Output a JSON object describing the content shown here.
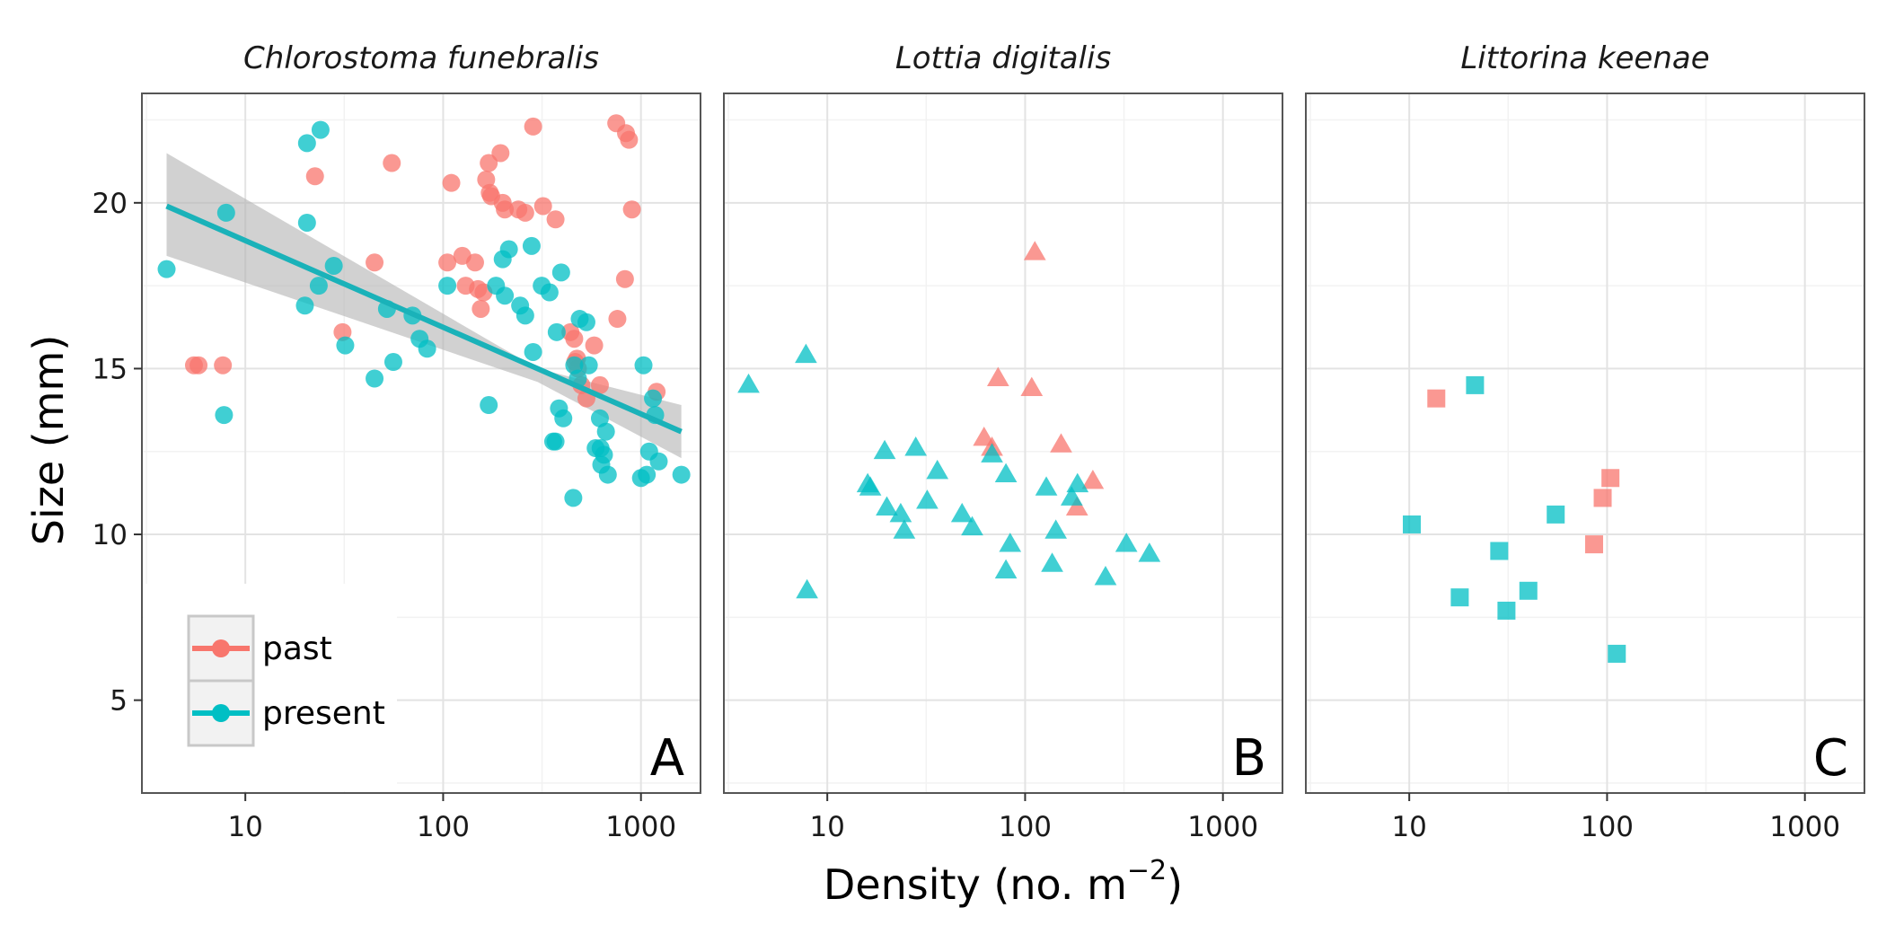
{
  "chart_data": {
    "type": "scatter",
    "xlabel_main": "Density (no. m",
    "xlabel_sup": "−2",
    "xlabel_close": ")",
    "ylabel": "Size (mm)",
    "x_scale": "log10",
    "xlim": [
      3,
      2000
    ],
    "ylim": [
      2.2,
      23.3
    ],
    "x_ticks": [
      10,
      100,
      1000
    ],
    "x_tick_labels": [
      "10",
      "100",
      "1000"
    ],
    "y_ticks": [
      5,
      10,
      15,
      20
    ],
    "y_tick_labels": [
      "5",
      "10",
      "15",
      "20"
    ],
    "grid": true,
    "legend": {
      "position": "bottom-left of first panel",
      "entries": [
        {
          "label": "past",
          "color": "#F8766D"
        },
        {
          "label": "present",
          "color": "#00BFC4"
        }
      ]
    },
    "colors": {
      "past": "#F8766D",
      "present": "#00BFC4",
      "fit_line": "#1AB2B9",
      "ribbon": "#B3B3B3"
    },
    "panels": [
      {
        "title": "Chlorostoma funebralis",
        "letter": "A",
        "marker": "circle",
        "fit": {
          "series": "present",
          "x": [
            4,
            1600
          ],
          "y": [
            19.9,
            13.1
          ],
          "ci_upper": [
            21.5,
            13.9
          ],
          "ci_mid_x": 300,
          "ci_mid_upper": 15.0,
          "ci_mid_lower": 14.6,
          "ci_lower": [
            18.4,
            12.3
          ]
        },
        "series": [
          {
            "name": "past",
            "points": [
              [
                5.5,
                15.1
              ],
              [
                5.8,
                15.1
              ],
              [
                7.7,
                15.1
              ],
              [
                22.5,
                20.8
              ],
              [
                31,
                16.1
              ],
              [
                45,
                18.2
              ],
              [
                55,
                21.2
              ],
              [
                105,
                18.2
              ],
              [
                110,
                20.6
              ],
              [
                125,
                18.4
              ],
              [
                130,
                17.5
              ],
              [
                145,
                18.2
              ],
              [
                150,
                17.4
              ],
              [
                155,
                16.8
              ],
              [
                160,
                17.3
              ],
              [
                165,
                20.7
              ],
              [
                170,
                21.2
              ],
              [
                172,
                20.3
              ],
              [
                175,
                20.2
              ],
              [
                195,
                21.5
              ],
              [
                200,
                20.0
              ],
              [
                205,
                19.8
              ],
              [
                240,
                19.8
              ],
              [
                260,
                19.7
              ],
              [
                285,
                22.3
              ],
              [
                320,
                19.9
              ],
              [
                370,
                19.5
              ],
              [
                440,
                16.1
              ],
              [
                460,
                15.9
              ],
              [
                465,
                15.2
              ],
              [
                475,
                15.3
              ],
              [
                480,
                15.0
              ],
              [
                500,
                14.5
              ],
              [
                530,
                14.1
              ],
              [
                580,
                15.7
              ],
              [
                620,
                14.5
              ],
              [
                750,
                22.4
              ],
              [
                760,
                16.5
              ],
              [
                830,
                17.7
              ],
              [
                840,
                22.1
              ],
              [
                870,
                21.9
              ],
              [
                900,
                19.8
              ],
              [
                1200,
                14.3
              ]
            ]
          },
          {
            "name": "present",
            "points": [
              [
                4,
                18.0
              ],
              [
                7.8,
                13.6
              ],
              [
                8,
                19.7
              ],
              [
                20,
                16.9
              ],
              [
                20.5,
                19.4
              ],
              [
                20.5,
                21.8
              ],
              [
                23.5,
                17.5
              ],
              [
                24,
                22.2
              ],
              [
                28,
                18.1
              ],
              [
                32,
                15.7
              ],
              [
                45,
                14.7
              ],
              [
                52,
                16.8
              ],
              [
                56,
                15.2
              ],
              [
                70,
                16.6
              ],
              [
                76,
                15.9
              ],
              [
                83,
                15.6
              ],
              [
                105,
                17.5
              ],
              [
                170,
                13.9
              ],
              [
                185,
                17.5
              ],
              [
                200,
                18.3
              ],
              [
                205,
                17.2
              ],
              [
                215,
                18.6
              ],
              [
                245,
                16.9
              ],
              [
                260,
                16.6
              ],
              [
                280,
                18.7
              ],
              [
                285,
                15.5
              ],
              [
                315,
                17.5
              ],
              [
                345,
                17.3
              ],
              [
                360,
                12.8
              ],
              [
                370,
                12.8
              ],
              [
                375,
                16.1
              ],
              [
                385,
                13.8
              ],
              [
                395,
                17.9
              ],
              [
                405,
                13.5
              ],
              [
                455,
                11.1
              ],
              [
                460,
                15.1
              ],
              [
                480,
                14.7
              ],
              [
                490,
                16.5
              ],
              [
                530,
                16.4
              ],
              [
                545,
                15.1
              ],
              [
                590,
                12.6
              ],
              [
                620,
                13.5
              ],
              [
                625,
                12.6
              ],
              [
                630,
                12.1
              ],
              [
                650,
                12.4
              ],
              [
                665,
                13.1
              ],
              [
                680,
                11.8
              ],
              [
                1000,
                11.7
              ],
              [
                1030,
                15.1
              ],
              [
                1070,
                11.8
              ],
              [
                1100,
                12.5
              ],
              [
                1150,
                14.1
              ],
              [
                1180,
                13.6
              ],
              [
                1230,
                12.2
              ],
              [
                1600,
                11.8
              ]
            ]
          }
        ]
      },
      {
        "title": "Lottia digitalis",
        "letter": "B",
        "marker": "triangle",
        "series": [
          {
            "name": "past",
            "points": [
              [
                62,
                12.9
              ],
              [
                68,
                12.6
              ],
              [
                73,
                14.7
              ],
              [
                108,
                14.4
              ],
              [
                112,
                18.5
              ],
              [
                152,
                12.7
              ],
              [
                183,
                10.8
              ],
              [
                220,
                11.6
              ]
            ]
          },
          {
            "name": "present",
            "points": [
              [
                4,
                14.5
              ],
              [
                7.8,
                15.4
              ],
              [
                7.9,
                8.3
              ],
              [
                16,
                11.5
              ],
              [
                16.5,
                11.4
              ],
              [
                19.5,
                12.5
              ],
              [
                20,
                10.8
              ],
              [
                23.5,
                10.6
              ],
              [
                24.5,
                10.1
              ],
              [
                28,
                12.6
              ],
              [
                32,
                11.0
              ],
              [
                36,
                11.9
              ],
              [
                48,
                10.6
              ],
              [
                54,
                10.2
              ],
              [
                68,
                12.4
              ],
              [
                80,
                11.8
              ],
              [
                80,
                8.9
              ],
              [
                84,
                9.7
              ],
              [
                128,
                11.4
              ],
              [
                137,
                9.1
              ],
              [
                143,
                10.1
              ],
              [
                172,
                11.1
              ],
              [
                184,
                11.5
              ],
              [
                255,
                8.7
              ],
              [
                325,
                9.7
              ],
              [
                425,
                9.4
              ]
            ]
          }
        ]
      },
      {
        "title": "Littorina keenae",
        "letter": "C",
        "marker": "square",
        "series": [
          {
            "name": "past",
            "points": [
              [
                13.7,
                14.1
              ],
              [
                86,
                9.7
              ],
              [
                95,
                11.1
              ],
              [
                104,
                11.7
              ]
            ]
          },
          {
            "name": "present",
            "points": [
              [
                10.3,
                10.3
              ],
              [
                18,
                8.1
              ],
              [
                21.5,
                14.5
              ],
              [
                28.5,
                9.5
              ],
              [
                31,
                7.7
              ],
              [
                40,
                8.3
              ],
              [
                55,
                10.6
              ],
              [
                112,
                6.4
              ]
            ]
          }
        ]
      }
    ]
  }
}
